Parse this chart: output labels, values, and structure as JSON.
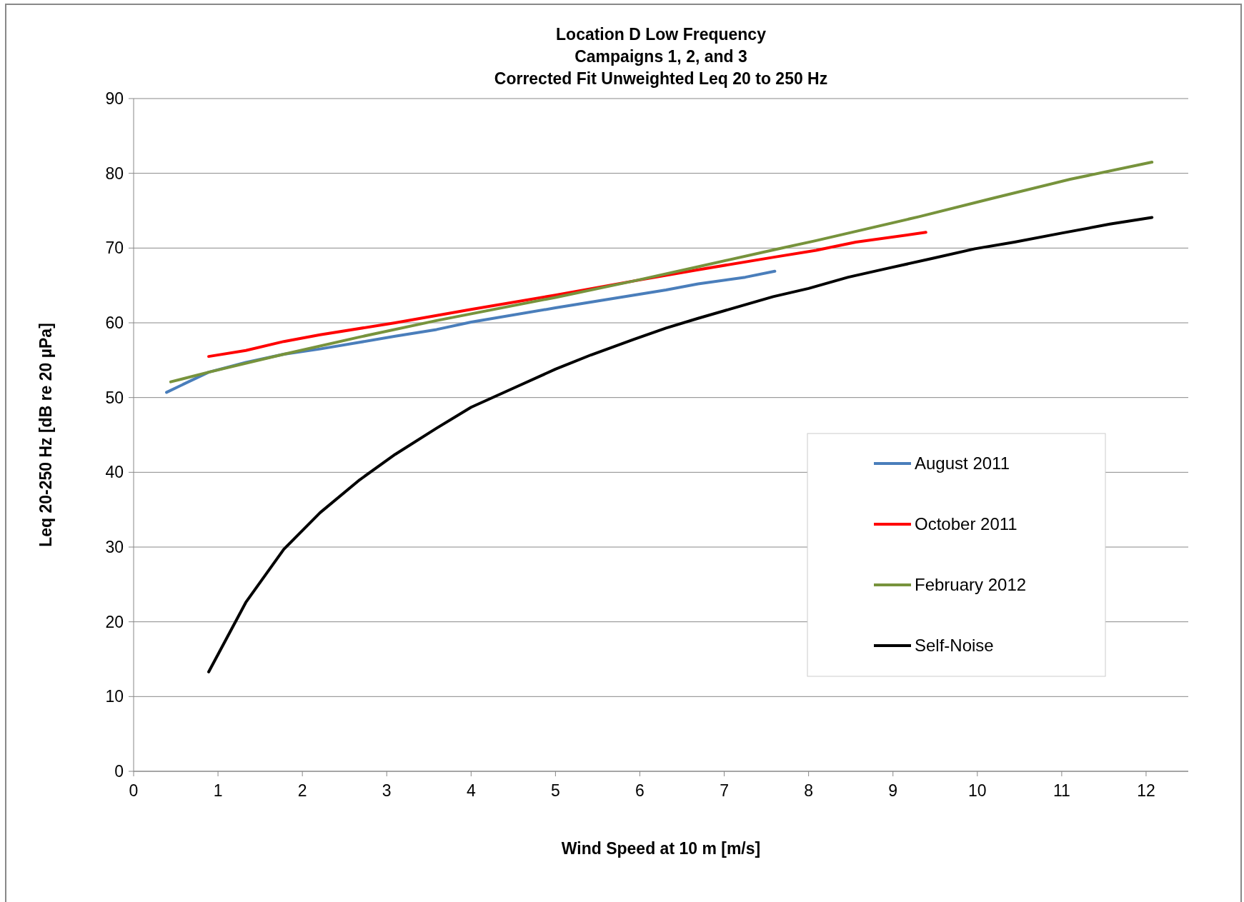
{
  "chart_data": {
    "type": "line",
    "title": "Location D Low Frequency\nCampaigns 1, 2, and 3\nCorrected Fit Unweighted  Leq 20 to 250 Hz",
    "xlabel": "Wind Speed at 10 m [m/s]",
    "ylabel": "Leq 20-250 Hz [dB re 20 µPa]",
    "xlim": [
      0,
      12.5
    ],
    "xticks": [
      0,
      1,
      2,
      3,
      4,
      5,
      6,
      7,
      8,
      9,
      10,
      11,
      12
    ],
    "ylim": [
      0,
      90
    ],
    "yticks": [
      0,
      10,
      20,
      30,
      40,
      50,
      60,
      70,
      80,
      90
    ],
    "grid": "y",
    "legend": "right",
    "line_style": "solid",
    "series": [
      {
        "name": "August 2011",
        "color": "#4a7ebb",
        "x": [
          0.39,
          0.89,
          1.33,
          1.78,
          2.21,
          2.68,
          3.1,
          3.59,
          4.0,
          5.0,
          5.93,
          6.31,
          6.69,
          7.25,
          7.6
        ],
        "values": [
          50.7,
          53.4,
          54.7,
          55.8,
          56.5,
          57.4,
          58.2,
          59.1,
          60.1,
          62.0,
          63.7,
          64.4,
          65.2,
          66.1,
          66.9
        ]
      },
      {
        "name": "October 2011",
        "color": "#ff0000",
        "x": [
          0.89,
          1.33,
          1.78,
          2.21,
          3.1,
          4.0,
          5.0,
          5.93,
          6.69,
          7.6,
          8.09,
          8.56,
          9.39
        ],
        "values": [
          55.5,
          56.3,
          57.5,
          58.4,
          60.0,
          61.8,
          63.7,
          65.6,
          67.1,
          68.8,
          69.7,
          70.8,
          72.1
        ]
      },
      {
        "name": "February 2012",
        "color": "#77933c",
        "x": [
          0.44,
          0.89,
          1.78,
          2.68,
          3.59,
          5.0,
          5.93,
          6.69,
          7.6,
          8.09,
          9.31,
          10.16,
          11.1,
          12.07
        ],
        "values": [
          52.1,
          53.4,
          55.8,
          58.1,
          60.3,
          63.4,
          65.6,
          67.5,
          69.8,
          71.0,
          74.2,
          76.6,
          79.2,
          81.5
        ]
      },
      {
        "name": "Self-Noise",
        "color": "#000000",
        "x": [
          0.89,
          1.33,
          1.78,
          2.21,
          2.68,
          3.1,
          3.59,
          4.0,
          4.53,
          5.0,
          5.42,
          5.93,
          6.31,
          6.69,
          7.06,
          7.58,
          8.0,
          8.47,
          8.94,
          9.46,
          9.97,
          10.44,
          11.0,
          11.57,
          12.07
        ],
        "values": [
          13.3,
          22.6,
          29.7,
          34.6,
          39.0,
          42.4,
          45.9,
          48.7,
          51.4,
          53.8,
          55.7,
          57.8,
          59.3,
          60.6,
          61.8,
          63.5,
          64.6,
          66.1,
          67.3,
          68.6,
          69.9,
          70.8,
          72.0,
          73.2,
          74.1
        ]
      }
    ]
  }
}
